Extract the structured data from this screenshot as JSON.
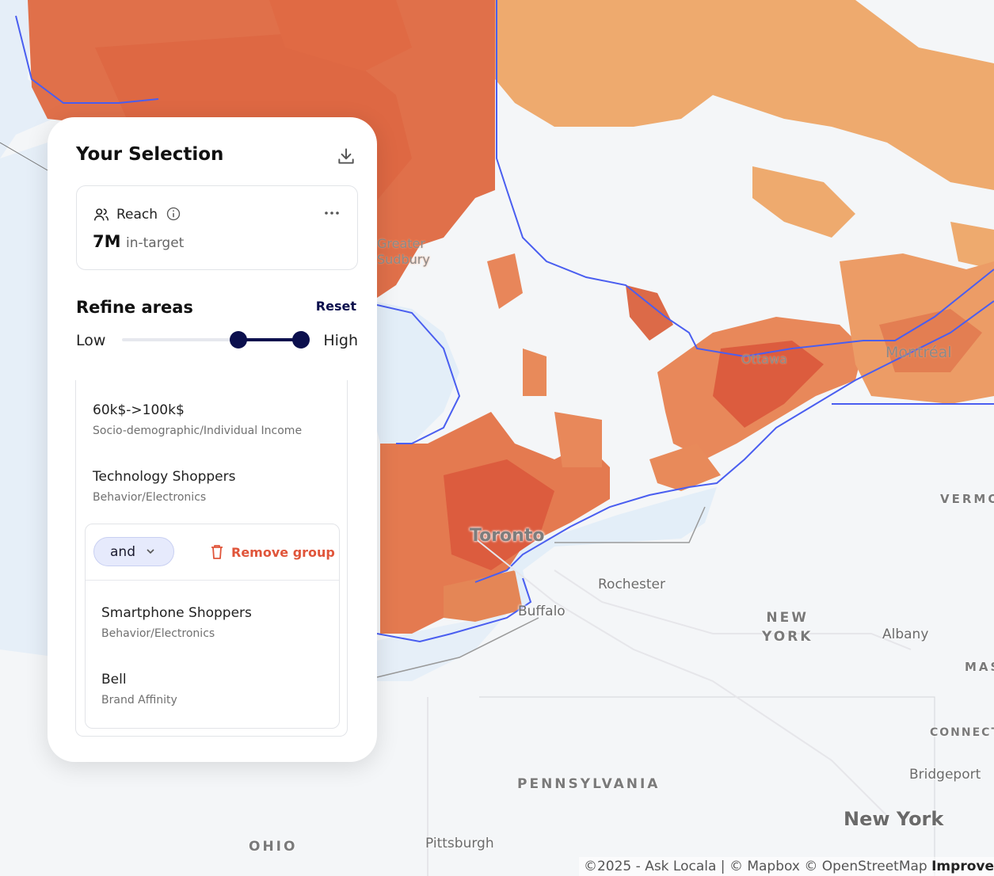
{
  "map": {
    "labels": {
      "greater_sudbury": "Greater\nSudbury",
      "ottawa": "Ottawa",
      "montreal": "Montréal",
      "toronto": "Toronto",
      "rochester": "Rochester",
      "buffalo": "Buffalo",
      "new_york_state": "NEW\nYORK",
      "albany": "Albany",
      "vermont": "VERMO",
      "mass": "MAS",
      "connecticut": "CONNECT",
      "bridgeport": "Bridgeport",
      "new_york_city": "New York",
      "pennsylvania": "PENNSYLVANIA",
      "pittsburgh": "Pittsburgh",
      "ohio": "OHIO"
    },
    "heat_color_high": "#dc5c3e",
    "heat_color_mid": "#e88a56",
    "heat_color_low": "#eeaa6e",
    "boundary_color": "#4a5ef0",
    "water_color": "#e3eef8"
  },
  "attribution": {
    "text": "©2025 - Ask Locala | © Mapbox © OpenStreetMap",
    "improve": "Improve"
  },
  "panel": {
    "title": "Your Selection",
    "reach": {
      "label": "Reach",
      "value": "7M",
      "sub": "in-target"
    },
    "refine": {
      "title": "Refine areas",
      "reset": "Reset",
      "low": "Low",
      "high": "High",
      "range": [
        0.65,
        1.0
      ]
    },
    "criteria": [
      {
        "name": "60k$->100k$",
        "category": "Socio-demographic/Individual Income"
      },
      {
        "name": "Technology Shoppers",
        "category": "Behavior/Electronics"
      }
    ],
    "group": {
      "operator": "and",
      "remove_label": "Remove group",
      "items": [
        {
          "name": "Smartphone Shoppers",
          "category": "Behavior/Electronics"
        },
        {
          "name": "Bell",
          "category": "Brand Affinity"
        }
      ]
    }
  }
}
